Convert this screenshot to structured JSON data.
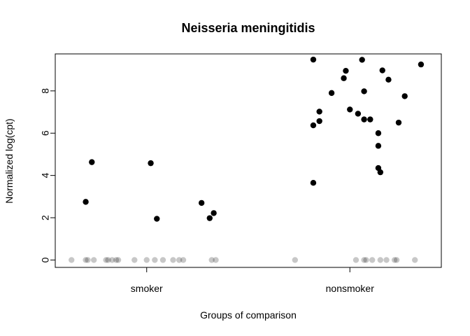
{
  "chart_data": {
    "type": "scatter",
    "title": "Neisseria meningitidis",
    "xlabel": "Groups of comparison",
    "ylabel": "Normalized log(cpt)",
    "categories": [
      "smoker",
      "nonsmoker"
    ],
    "yticks": [
      0,
      2,
      4,
      6,
      8
    ],
    "ylim": [
      -0.35,
      9.75
    ],
    "xlim": [
      0.55,
      2.45
    ],
    "grid": false,
    "legend": "none",
    "point_color": "#000000",
    "zero_point_color": "#000000",
    "series": [
      {
        "category": "smoker",
        "nonzero_points": [
          {
            "x": 0.7,
            "y": 2.75
          },
          {
            "x": 0.73,
            "y": 4.63
          },
          {
            "x": 1.02,
            "y": 4.58
          },
          {
            "x": 1.05,
            "y": 1.95
          },
          {
            "x": 1.27,
            "y": 2.7
          },
          {
            "x": 1.31,
            "y": 1.98
          },
          {
            "x": 1.33,
            "y": 2.22
          }
        ],
        "zero_points_x": [
          0.63,
          0.7,
          0.71,
          0.74,
          0.8,
          0.81,
          0.83,
          0.85,
          0.86,
          0.94,
          1.0,
          1.04,
          1.08,
          1.13,
          1.16,
          1.18,
          1.32,
          1.34
        ]
      },
      {
        "category": "nonsmoker",
        "nonzero_points": [
          {
            "x": 1.82,
            "y": 3.65
          },
          {
            "x": 1.82,
            "y": 6.37
          },
          {
            "x": 1.82,
            "y": 9.48
          },
          {
            "x": 1.85,
            "y": 7.02
          },
          {
            "x": 1.85,
            "y": 6.57
          },
          {
            "x": 1.91,
            "y": 7.9
          },
          {
            "x": 1.97,
            "y": 8.6
          },
          {
            "x": 1.98,
            "y": 8.95
          },
          {
            "x": 2.0,
            "y": 7.12
          },
          {
            "x": 2.04,
            "y": 6.92
          },
          {
            "x": 2.06,
            "y": 9.47
          },
          {
            "x": 2.07,
            "y": 7.98
          },
          {
            "x": 2.07,
            "y": 6.65
          },
          {
            "x": 2.1,
            "y": 6.65
          },
          {
            "x": 2.14,
            "y": 6.0
          },
          {
            "x": 2.14,
            "y": 5.4
          },
          {
            "x": 2.14,
            "y": 4.35
          },
          {
            "x": 2.15,
            "y": 4.15
          },
          {
            "x": 2.16,
            "y": 8.97
          },
          {
            "x": 2.19,
            "y": 8.53
          },
          {
            "x": 2.24,
            "y": 6.5
          },
          {
            "x": 2.27,
            "y": 7.75
          },
          {
            "x": 2.35,
            "y": 9.25
          }
        ],
        "zero_points_x": [
          1.73,
          2.03,
          2.07,
          2.08,
          2.11,
          2.15,
          2.18,
          2.22,
          2.23,
          2.32
        ]
      }
    ]
  }
}
